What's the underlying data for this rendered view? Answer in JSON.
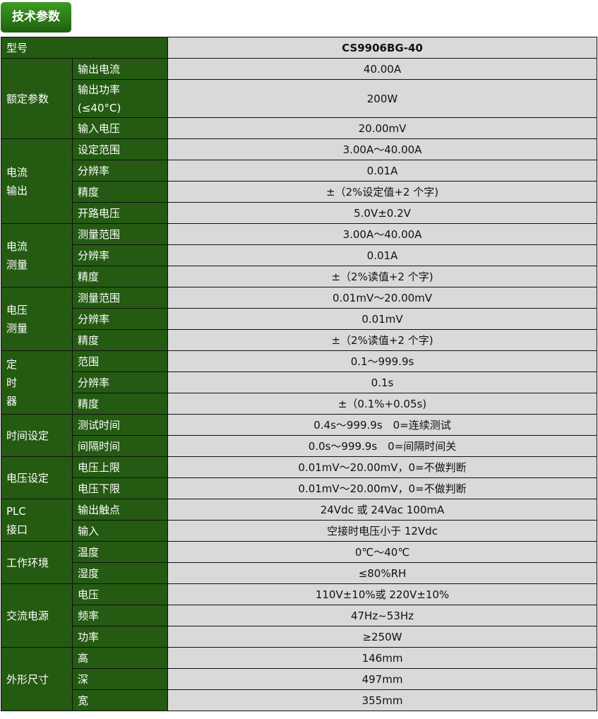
{
  "title": "技术参数",
  "model": {
    "label": "型号",
    "value": "CS9906BG-40"
  },
  "groups": [
    {
      "label": "额定参数",
      "rows": [
        [
          "输出电流",
          "40.00A"
        ],
        [
          "输出功率(≤40°C)",
          "200W"
        ],
        [
          "输入电压",
          "20.00mV"
        ]
      ]
    },
    {
      "label": "电流\n输出",
      "rows": [
        [
          "设定范围",
          "3.00A～40.00A"
        ],
        [
          "分辨率",
          "0.01A"
        ],
        [
          "精度",
          "±（2%设定值+2 个字)"
        ],
        [
          "开路电压",
          "5.0V±0.2V"
        ]
      ]
    },
    {
      "label": "电流\n测量",
      "rows": [
        [
          "测量范围",
          "3.00A～40.00A"
        ],
        [
          "分辨率",
          "0.01A"
        ],
        [
          "精度",
          "±（2%读值+2 个字)"
        ]
      ]
    },
    {
      "label": "电压\n测量",
      "rows": [
        [
          "测量范围",
          "0.01mV～20.00mV"
        ],
        [
          "分辨率",
          "0.01mV"
        ],
        [
          "精度",
          "±（2%读值+2 个字)"
        ]
      ]
    },
    {
      "label": "定\n时\n器",
      "rows": [
        [
          "范围",
          "0.1～999.9s"
        ],
        [
          "分辨率",
          "0.1s"
        ],
        [
          "精度",
          "±（0.1%+0.05s)"
        ]
      ]
    },
    {
      "label": "时间设定",
      "rows": [
        [
          "测试时间",
          "0.4s～999.9s　0=连续测试"
        ],
        [
          "间隔时间",
          "0.0s～999.9s　0=间隔时间关"
        ]
      ]
    },
    {
      "label": "电压设定",
      "rows": [
        [
          "电压上限",
          "0.01mV～20.00mV，0=不做判断"
        ],
        [
          "电压下限",
          "0.01mV～20.00mV，0=不做判断"
        ]
      ]
    },
    {
      "label": "PLC\n接口",
      "rows": [
        [
          "输出触点",
          "24Vdc 或 24Vac 100mA"
        ],
        [
          "输入",
          "空接时电压小于 12Vdc"
        ]
      ]
    },
    {
      "label": "工作环境",
      "rows": [
        [
          "温度",
          "0℃～40℃"
        ],
        [
          "湿度",
          "≤80%RH"
        ]
      ]
    },
    {
      "label": "交流电源",
      "rows": [
        [
          "电压",
          "110V±10%或 220V±10%"
        ],
        [
          "频率",
          "47Hz~53Hz"
        ],
        [
          "功率",
          "≥250W"
        ]
      ]
    },
    {
      "label": "外形尺寸",
      "rows": [
        [
          "高",
          "146mm"
        ],
        [
          "深",
          "497mm"
        ],
        [
          "宽",
          "355mm"
        ]
      ]
    }
  ]
}
